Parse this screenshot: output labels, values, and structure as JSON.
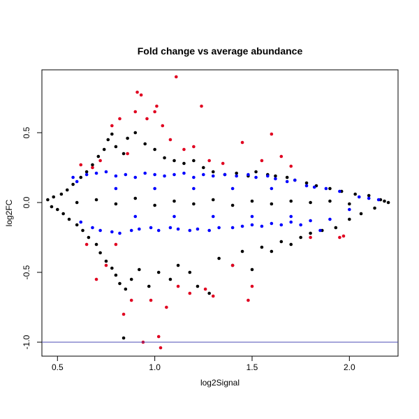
{
  "chart_data": {
    "type": "scatter",
    "title": "Fold change vs average abundance",
    "xlabel": "log2Signal",
    "ylabel": "log2FC",
    "xlim": [
      0.42,
      2.25
    ],
    "ylim": [
      -1.1,
      0.95
    ],
    "xticks": [
      0.5,
      1.0,
      1.5,
      2.0
    ],
    "yticks": [
      -1.0,
      -0.5,
      0.0,
      0.5
    ],
    "xtick_labels": [
      "0.5",
      "1.0",
      "1.5",
      "2.0"
    ],
    "ytick_labels": [
      "-1.0",
      "-0.5",
      "0.0",
      "0.5"
    ],
    "grid": false,
    "reference_line": {
      "y": -1.0,
      "color": "#4b4bb4"
    },
    "series": [
      {
        "color": "#000000",
        "points": [
          [
            0.45,
            0.02
          ],
          [
            0.47,
            -0.03
          ],
          [
            0.48,
            0.04
          ],
          [
            0.5,
            -0.05
          ],
          [
            0.52,
            0.06
          ],
          [
            0.53,
            -0.08
          ],
          [
            0.55,
            0.09
          ],
          [
            0.56,
            -0.12
          ],
          [
            0.58,
            0.13
          ],
          [
            0.6,
            -0.16
          ],
          [
            0.62,
            0.18
          ],
          [
            0.63,
            -0.2
          ],
          [
            0.65,
            0.22
          ],
          [
            0.66,
            -0.25
          ],
          [
            0.68,
            0.27
          ],
          [
            0.7,
            -0.3
          ],
          [
            0.71,
            0.33
          ],
          [
            0.72,
            -0.36
          ],
          [
            0.74,
            0.38
          ],
          [
            0.75,
            -0.42
          ],
          [
            0.76,
            0.45
          ],
          [
            0.78,
            -0.47
          ],
          [
            0.78,
            0.49
          ],
          [
            0.8,
            -0.52
          ],
          [
            0.8,
            0.4
          ],
          [
            0.82,
            -0.58
          ],
          [
            0.84,
            0.35
          ],
          [
            0.85,
            -0.62
          ],
          [
            0.86,
            0.46
          ],
          [
            0.88,
            -0.55
          ],
          [
            0.9,
            0.5
          ],
          [
            0.92,
            -0.48
          ],
          [
            0.84,
            -0.97
          ],
          [
            0.95,
            0.42
          ],
          [
            0.97,
            -0.6
          ],
          [
            1.0,
            0.38
          ],
          [
            1.02,
            -0.5
          ],
          [
            1.05,
            0.32
          ],
          [
            1.08,
            -0.55
          ],
          [
            1.1,
            0.3
          ],
          [
            1.12,
            -0.45
          ],
          [
            1.15,
            0.28
          ],
          [
            1.18,
            -0.5
          ],
          [
            1.2,
            0.3
          ],
          [
            1.22,
            -0.6
          ],
          [
            1.25,
            0.25
          ],
          [
            1.28,
            -0.65
          ],
          [
            1.3,
            0.22
          ],
          [
            1.33,
            -0.4
          ],
          [
            1.36,
            0.2
          ],
          [
            1.4,
            -0.45
          ],
          [
            1.42,
            0.21
          ],
          [
            1.45,
            -0.35
          ],
          [
            1.48,
            0.19
          ],
          [
            1.5,
            -0.48
          ],
          [
            1.52,
            0.22
          ],
          [
            1.55,
            -0.32
          ],
          [
            1.58,
            0.2
          ],
          [
            1.6,
            -0.35
          ],
          [
            1.62,
            0.19
          ],
          [
            1.65,
            -0.28
          ],
          [
            1.68,
            0.18
          ],
          [
            1.7,
            -0.3
          ],
          [
            1.72,
            0.16
          ],
          [
            1.75,
            -0.25
          ],
          [
            1.78,
            0.14
          ],
          [
            1.8,
            -0.22
          ],
          [
            1.83,
            0.12
          ],
          [
            1.86,
            -0.2
          ],
          [
            1.9,
            0.1
          ],
          [
            1.93,
            -0.18
          ],
          [
            1.96,
            0.08
          ],
          [
            2.0,
            -0.12
          ],
          [
            2.03,
            0.06
          ],
          [
            2.06,
            -0.08
          ],
          [
            2.1,
            0.05
          ],
          [
            2.13,
            -0.04
          ],
          [
            2.16,
            0.02
          ],
          [
            2.18,
            0.01
          ],
          [
            2.2,
            0.0
          ],
          [
            0.6,
            0.0
          ],
          [
            0.7,
            0.02
          ],
          [
            0.8,
            -0.01
          ],
          [
            0.9,
            0.03
          ],
          [
            1.0,
            -0.02
          ],
          [
            1.1,
            0.01
          ],
          [
            1.2,
            -0.01
          ],
          [
            1.3,
            0.02
          ],
          [
            1.4,
            -0.02
          ],
          [
            1.5,
            0.01
          ],
          [
            1.6,
            -0.01
          ],
          [
            1.7,
            0.01
          ],
          [
            1.8,
            0.0
          ],
          [
            1.9,
            0.01
          ],
          [
            2.0,
            -0.01
          ]
        ]
      },
      {
        "color": "#0000ff",
        "points": [
          [
            0.58,
            0.18
          ],
          [
            0.6,
            0.15
          ],
          [
            0.62,
            -0.14
          ],
          [
            0.65,
            0.2
          ],
          [
            0.68,
            -0.18
          ],
          [
            0.7,
            0.21
          ],
          [
            0.72,
            -0.2
          ],
          [
            0.75,
            0.22
          ],
          [
            0.78,
            -0.21
          ],
          [
            0.8,
            0.19
          ],
          [
            0.82,
            -0.22
          ],
          [
            0.85,
            0.2
          ],
          [
            0.88,
            -0.2
          ],
          [
            0.9,
            0.18
          ],
          [
            0.92,
            -0.19
          ],
          [
            0.95,
            0.21
          ],
          [
            0.98,
            -0.18
          ],
          [
            1.0,
            0.2
          ],
          [
            1.02,
            -0.2
          ],
          [
            1.05,
            0.19
          ],
          [
            1.08,
            -0.18
          ],
          [
            1.1,
            0.2
          ],
          [
            1.12,
            -0.19
          ],
          [
            1.15,
            0.21
          ],
          [
            1.18,
            -0.2
          ],
          [
            1.2,
            0.18
          ],
          [
            1.22,
            -0.19
          ],
          [
            1.25,
            0.2
          ],
          [
            1.28,
            -0.2
          ],
          [
            1.3,
            0.19
          ],
          [
            1.33,
            -0.18
          ],
          [
            1.36,
            0.2
          ],
          [
            1.4,
            -0.18
          ],
          [
            1.42,
            0.19
          ],
          [
            1.45,
            -0.17
          ],
          [
            1.48,
            0.2
          ],
          [
            1.5,
            -0.16
          ],
          [
            1.52,
            0.18
          ],
          [
            1.55,
            -0.17
          ],
          [
            1.58,
            0.19
          ],
          [
            1.6,
            -0.15
          ],
          [
            1.62,
            0.17
          ],
          [
            1.65,
            -0.16
          ],
          [
            1.68,
            0.15
          ],
          [
            1.7,
            -0.14
          ],
          [
            1.72,
            0.16
          ],
          [
            1.75,
            -0.16
          ],
          [
            1.78,
            0.12
          ],
          [
            1.8,
            -0.13
          ],
          [
            1.82,
            0.11
          ],
          [
            1.85,
            -0.2
          ],
          [
            1.88,
            0.1
          ],
          [
            1.9,
            -0.12
          ],
          [
            1.95,
            0.08
          ],
          [
            2.0,
            -0.05
          ],
          [
            2.05,
            0.04
          ],
          [
            2.1,
            0.03
          ],
          [
            2.15,
            0.02
          ],
          [
            0.8,
            0.1
          ],
          [
            0.9,
            -0.1
          ],
          [
            1.0,
            0.1
          ],
          [
            1.1,
            -0.1
          ],
          [
            1.2,
            0.1
          ],
          [
            1.3,
            -0.1
          ],
          [
            1.4,
            0.1
          ],
          [
            1.5,
            -0.1
          ],
          [
            1.6,
            0.1
          ],
          [
            1.7,
            -0.1
          ]
        ]
      },
      {
        "color": "#e00020",
        "points": [
          [
            0.62,
            0.27
          ],
          [
            0.65,
            -0.3
          ],
          [
            0.68,
            0.25
          ],
          [
            0.7,
            -0.55
          ],
          [
            0.72,
            0.3
          ],
          [
            0.75,
            -0.45
          ],
          [
            0.78,
            0.55
          ],
          [
            0.8,
            -0.3
          ],
          [
            0.82,
            0.6
          ],
          [
            0.84,
            -0.8
          ],
          [
            0.86,
            0.35
          ],
          [
            0.88,
            -0.7
          ],
          [
            0.9,
            0.65
          ],
          [
            0.91,
            0.79
          ],
          [
            0.93,
            0.77
          ],
          [
            0.94,
            -1.0
          ],
          [
            0.96,
            0.6
          ],
          [
            0.98,
            -0.7
          ],
          [
            1.0,
            0.65
          ],
          [
            1.01,
            0.69
          ],
          [
            1.02,
            -0.96
          ],
          [
            1.03,
            -1.04
          ],
          [
            1.04,
            0.55
          ],
          [
            1.06,
            -0.75
          ],
          [
            1.08,
            0.45
          ],
          [
            1.11,
            0.9
          ],
          [
            1.12,
            -0.6
          ],
          [
            1.15,
            0.38
          ],
          [
            1.18,
            -0.65
          ],
          [
            1.2,
            0.4
          ],
          [
            1.24,
            0.69
          ],
          [
            1.26,
            -0.62
          ],
          [
            1.28,
            0.3
          ],
          [
            1.3,
            -0.67
          ],
          [
            1.35,
            0.28
          ],
          [
            1.4,
            -0.45
          ],
          [
            1.45,
            0.43
          ],
          [
            1.48,
            -0.7
          ],
          [
            1.5,
            -0.6
          ],
          [
            1.55,
            0.3
          ],
          [
            1.6,
            0.49
          ],
          [
            1.65,
            0.33
          ],
          [
            1.7,
            0.26
          ],
          [
            1.8,
            -0.25
          ],
          [
            1.95,
            -0.25
          ],
          [
            1.97,
            -0.24
          ]
        ]
      }
    ]
  }
}
